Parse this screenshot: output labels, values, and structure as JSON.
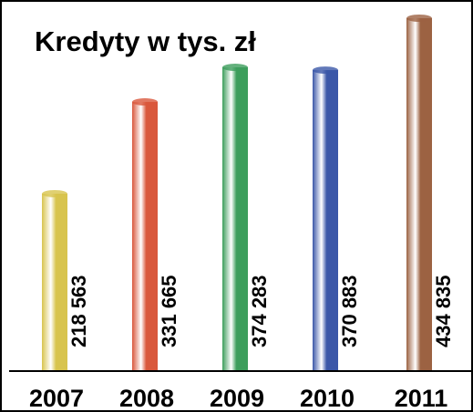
{
  "chart_data": {
    "type": "bar",
    "title": "Kredyty w tys. zł",
    "categories": [
      "2007",
      "2008",
      "2009",
      "2010",
      "2011"
    ],
    "values": [
      218563,
      331665,
      374283,
      370883,
      434835
    ],
    "value_labels": [
      "218 563",
      "331 665",
      "374 283",
      "370 883",
      "434 835"
    ],
    "colors": [
      "#d8c44e",
      "#d9583c",
      "#3d9e5c",
      "#3b57a8",
      "#9c6242"
    ]
  }
}
